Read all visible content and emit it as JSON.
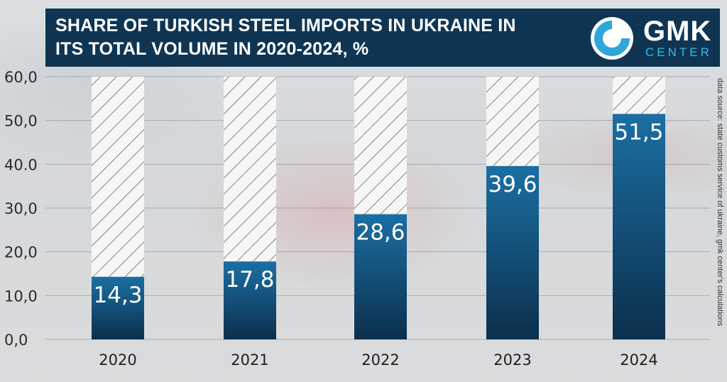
{
  "header": {
    "title": "SHARE OF TURKISH STEEL IMPORTS  IN UKRAINE IN\nITS TOTAL VOLUME IN 2020-2024, %"
  },
  "logo": {
    "main": "GMK",
    "sub": "CENTER",
    "icon": "gmk-ring-logo"
  },
  "source_note": "data source: state customs service of ukraine, gmk center's calculations",
  "colors": {
    "header_bg": "#0f3553",
    "bar_top": "#1b6fa3",
    "bar_bottom": "#0c2f4c",
    "logo_accent": "#3ab8e8"
  },
  "chart_data": {
    "type": "bar",
    "categories": [
      "2020",
      "2021",
      "2022",
      "2023",
      "2024"
    ],
    "values": [
      14.3,
      17.8,
      28.6,
      39.6,
      51.5
    ],
    "value_labels": [
      "14,3",
      "17,8",
      "28,6",
      "39,6",
      "51,5"
    ],
    "yticks": [
      0,
      10,
      20,
      30,
      40,
      50,
      60
    ],
    "ytick_labels": [
      "0,0",
      "10,0",
      "20,0",
      "30,0",
      "40.0",
      "50,0",
      "60,0"
    ],
    "ylim": [
      0,
      60
    ],
    "title": "SHARE OF TURKISH STEEL IMPORTS  IN UKRAINE IN ITS TOTAL VOLUME IN 2020-2024, %",
    "xlabel": "",
    "ylabel": "",
    "background_bars": "hatched to 60,0",
    "grid": true,
    "legend": "none"
  }
}
